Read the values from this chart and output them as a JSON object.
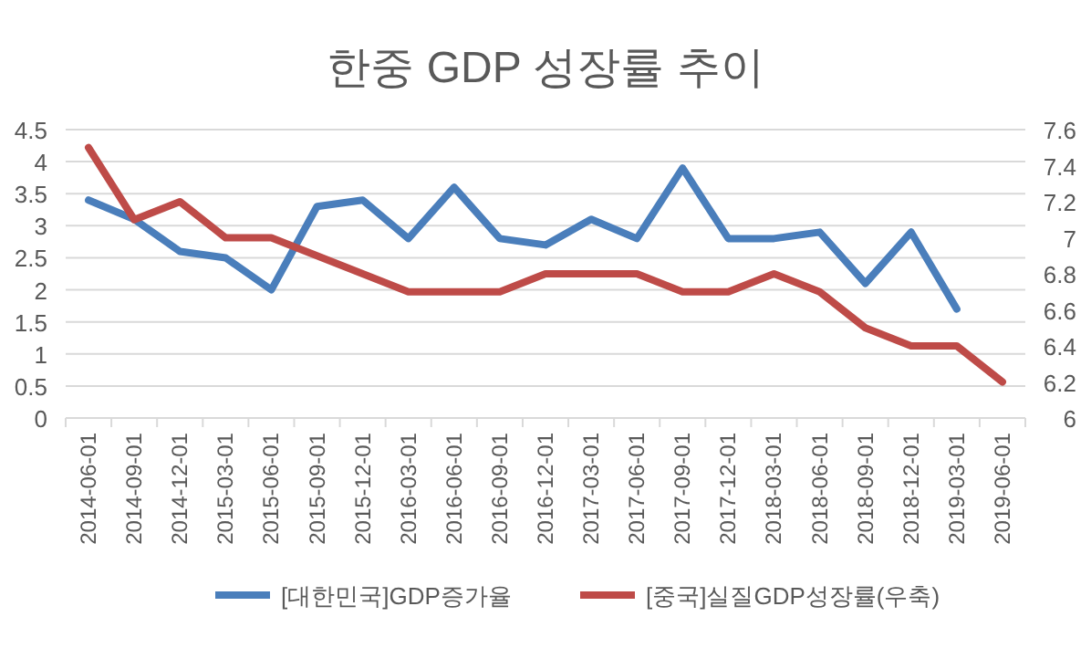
{
  "chart_data": {
    "type": "line",
    "title": "한중 GDP 성장률 추이",
    "categories": [
      "2014-06-01",
      "2014-09-01",
      "2014-12-01",
      "2015-03-01",
      "2015-06-01",
      "2015-09-01",
      "2015-12-01",
      "2016-03-01",
      "2016-06-01",
      "2016-09-01",
      "2016-12-01",
      "2017-03-01",
      "2017-06-01",
      "2017-09-01",
      "2017-12-01",
      "2018-03-01",
      "2018-06-01",
      "2018-09-01",
      "2018-12-01",
      "2019-03-01",
      "2019-06-01"
    ],
    "series": [
      {
        "name": "[대한민국]GDP증가율",
        "color": "#4a7ebb",
        "values": [
          3.4,
          3.1,
          2.6,
          2.5,
          2.0,
          3.3,
          3.4,
          2.8,
          3.6,
          2.8,
          2.7,
          3.1,
          2.8,
          3.9,
          2.8,
          2.8,
          2.9,
          2.1,
          2.9,
          1.7,
          null
        ]
      },
      {
        "name": "[중국]실질GDP성장률(우축)",
        "color": "#be4b48",
        "axis": "y2",
        "values": [
          7.5,
          7.1,
          7.2,
          7.0,
          7.0,
          6.9,
          6.8,
          6.7,
          6.7,
          6.7,
          6.8,
          6.8,
          6.8,
          6.7,
          6.7,
          6.8,
          6.7,
          6.5,
          6.4,
          6.4,
          6.2
        ]
      }
    ],
    "ylim": [
      0,
      4.5
    ],
    "yticks": [
      0,
      0.5,
      1,
      1.5,
      2,
      2.5,
      3,
      3.5,
      4,
      4.5
    ],
    "y2lim": [
      6,
      7.6
    ],
    "y2ticks": [
      6,
      6.2,
      6.4,
      6.6,
      6.8,
      7,
      7.2,
      7.4,
      7.6
    ],
    "grid": "y",
    "legend": "bottom"
  }
}
